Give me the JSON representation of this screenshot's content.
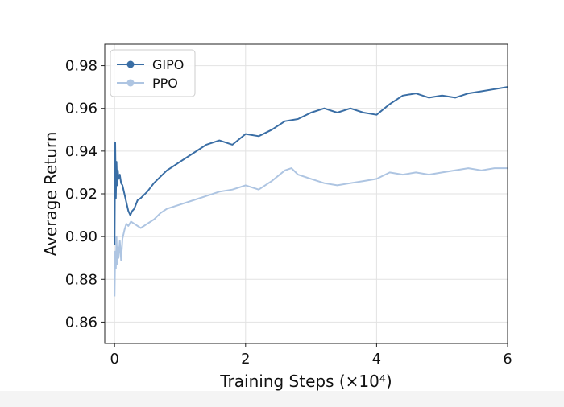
{
  "chart_data": {
    "type": "line",
    "title": "",
    "xlabel": "Training Steps (×10⁴)",
    "ylabel": "Average Return",
    "xlim": [
      -0.15,
      6.0
    ],
    "ylim": [
      0.85,
      0.99
    ],
    "xticks": [
      0,
      2,
      4,
      6
    ],
    "xtick_labels": [
      "0",
      "2",
      "4",
      "6"
    ],
    "yticks": [
      0.86,
      0.88,
      0.9,
      0.92,
      0.94,
      0.96,
      0.98
    ],
    "ytick_labels": [
      "0.86",
      "0.88",
      "0.90",
      "0.92",
      "0.94",
      "0.96",
      "0.98"
    ],
    "grid": true,
    "legend": {
      "placement": "top-left"
    },
    "series": [
      {
        "name": "GIPO",
        "color": "#3a6ea5",
        "x": [
          0.0,
          0.01,
          0.02,
          0.03,
          0.04,
          0.05,
          0.06,
          0.08,
          0.1,
          0.12,
          0.15,
          0.18,
          0.21,
          0.24,
          0.27,
          0.3,
          0.35,
          0.4,
          0.5,
          0.6,
          0.7,
          0.8,
          0.9,
          1.0,
          1.2,
          1.4,
          1.6,
          1.8,
          2.0,
          2.2,
          2.4,
          2.6,
          2.8,
          3.0,
          3.2,
          3.4,
          3.6,
          3.8,
          4.0,
          4.2,
          4.4,
          4.6,
          4.8,
          5.0,
          5.2,
          5.4,
          5.6,
          5.8,
          6.0
        ],
        "y": [
          0.896,
          0.944,
          0.918,
          0.935,
          0.924,
          0.931,
          0.927,
          0.929,
          0.925,
          0.924,
          0.92,
          0.916,
          0.912,
          0.91,
          0.912,
          0.913,
          0.917,
          0.918,
          0.921,
          0.925,
          0.928,
          0.931,
          0.933,
          0.935,
          0.939,
          0.943,
          0.945,
          0.943,
          0.948,
          0.947,
          0.95,
          0.954,
          0.955,
          0.958,
          0.96,
          0.958,
          0.96,
          0.958,
          0.957,
          0.962,
          0.966,
          0.967,
          0.965,
          0.966,
          0.965,
          0.967,
          0.968,
          0.969,
          0.97
        ]
      },
      {
        "name": "PPO",
        "color": "#aec5e2",
        "x": [
          0.0,
          0.01,
          0.02,
          0.03,
          0.04,
          0.05,
          0.06,
          0.08,
          0.1,
          0.12,
          0.15,
          0.18,
          0.21,
          0.25,
          0.3,
          0.4,
          0.5,
          0.6,
          0.7,
          0.8,
          0.9,
          1.0,
          1.2,
          1.4,
          1.6,
          1.8,
          2.0,
          2.2,
          2.4,
          2.6,
          2.7,
          2.8,
          3.0,
          3.2,
          3.4,
          3.6,
          3.8,
          4.0,
          4.2,
          4.4,
          4.6,
          4.8,
          5.0,
          5.2,
          5.4,
          5.6,
          5.8,
          6.0
        ],
        "y": [
          0.872,
          0.893,
          0.885,
          0.9,
          0.887,
          0.895,
          0.89,
          0.898,
          0.889,
          0.899,
          0.903,
          0.906,
          0.905,
          0.907,
          0.906,
          0.904,
          0.906,
          0.908,
          0.911,
          0.913,
          0.914,
          0.915,
          0.917,
          0.919,
          0.921,
          0.922,
          0.924,
          0.922,
          0.926,
          0.931,
          0.932,
          0.929,
          0.927,
          0.925,
          0.924,
          0.925,
          0.926,
          0.927,
          0.93,
          0.929,
          0.93,
          0.929,
          0.93,
          0.931,
          0.932,
          0.931,
          0.932,
          0.932
        ]
      }
    ]
  }
}
